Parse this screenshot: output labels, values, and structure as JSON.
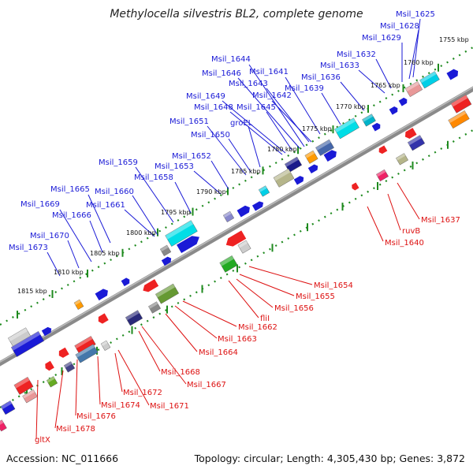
{
  "title": "Methylocella silvestris BL2, complete genome",
  "accession": "Accession: NC_011666",
  "topology": "Topology: circular; Length: 4,305,430 bp; Genes: 3,872",
  "colors": {
    "forward_label": "#1a1ad6",
    "reverse_label": "#dd1111",
    "backbone": "#8c8c8c",
    "tick": "#1e8a1e"
  },
  "kbp_ticks": [
    "1755 kbp",
    "1760 kbp",
    "1765 kbp",
    "1770 kbp",
    "1775 kbp",
    "1780 kbp",
    "1785 kbp",
    "1790 kbp",
    "1795 kbp",
    "1800 kbp",
    "1805 kbp",
    "1810 kbp",
    "1815 kbp"
  ],
  "forward_genes": [
    "Msil_1625",
    "Msil_1628",
    "Msil_1629",
    "Msil_1632",
    "Msil_1633",
    "Msil_1636",
    "Msil_1639",
    "Msil_1641",
    "Msil_1642",
    "Msil_1643",
    "Msil_1644",
    "Msil_1645",
    "Msil_1646",
    "Msil_1648",
    "Msil_1649",
    "groEL",
    "Msil_1650",
    "Msil_1651",
    "Msil_1652",
    "Msil_1653",
    "Msil_1658",
    "Msil_1659",
    "Msil_1660",
    "Msil_1661",
    "Msil_1665",
    "Msil_1666",
    "Msil_1669",
    "Msil_1670",
    "Msil_1673"
  ],
  "reverse_genes": [
    "Msil_1637",
    "ruvB",
    "Msil_1640",
    "Msil_1654",
    "Msil_1655",
    "Msil_1656",
    "fliI",
    "Msil_1662",
    "Msil_1663",
    "Msil_1664",
    "Msil_1667",
    "Msil_1668",
    "Msil_1671",
    "Msil_1672",
    "Msil_1674",
    "Msil_1676",
    "Msil_1678",
    "gltX"
  ]
}
